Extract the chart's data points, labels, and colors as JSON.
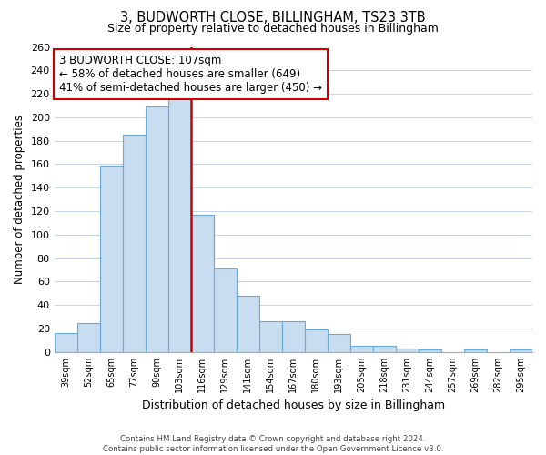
{
  "title": "3, BUDWORTH CLOSE, BILLINGHAM, TS23 3TB",
  "subtitle": "Size of property relative to detached houses in Billingham",
  "xlabel": "Distribution of detached houses by size in Billingham",
  "ylabel": "Number of detached properties",
  "categories": [
    "39sqm",
    "52sqm",
    "65sqm",
    "77sqm",
    "90sqm",
    "103sqm",
    "116sqm",
    "129sqm",
    "141sqm",
    "154sqm",
    "167sqm",
    "180sqm",
    "193sqm",
    "205sqm",
    "218sqm",
    "231sqm",
    "244sqm",
    "257sqm",
    "269sqm",
    "282sqm",
    "295sqm"
  ],
  "values": [
    16,
    25,
    159,
    185,
    209,
    217,
    117,
    71,
    48,
    26,
    26,
    19,
    15,
    5,
    5,
    3,
    2,
    0,
    2,
    0,
    2
  ],
  "bar_color": "#c9ddf0",
  "bar_edge_color": "#6aaad4",
  "vline_x": 5.5,
  "vline_color": "#cc0000",
  "annotation_title": "3 BUDWORTH CLOSE: 107sqm",
  "annotation_line1": "← 58% of detached houses are smaller (649)",
  "annotation_line2": "41% of semi-detached houses are larger (450) →",
  "annotation_box_edge": "#cc0000",
  "ylim": [
    0,
    260
  ],
  "yticks": [
    0,
    20,
    40,
    60,
    80,
    100,
    120,
    140,
    160,
    180,
    200,
    220,
    240,
    260
  ],
  "footer1": "Contains HM Land Registry data © Crown copyright and database right 2024.",
  "footer2": "Contains public sector information licensed under the Open Government Licence v3.0.",
  "bg_color": "#ffffff",
  "grid_color": "#c8d4e8"
}
